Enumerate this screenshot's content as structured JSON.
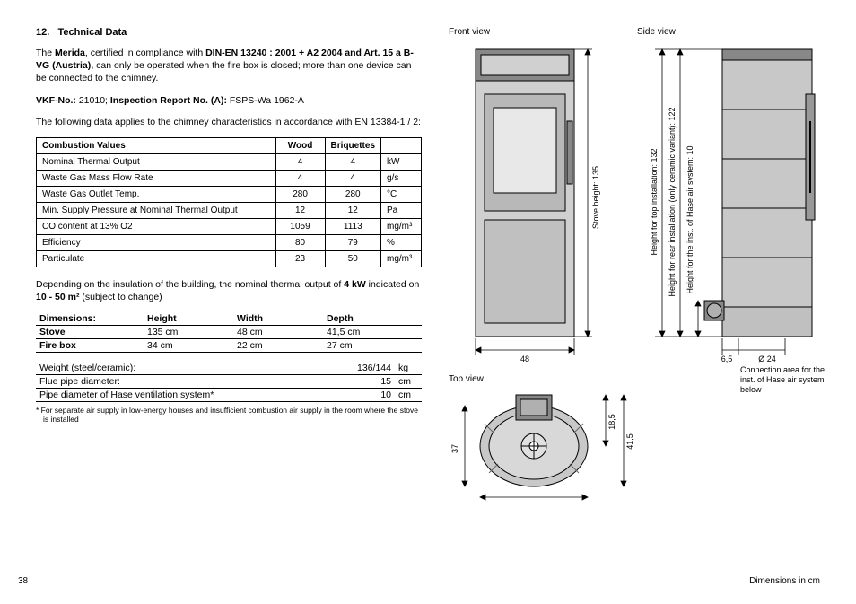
{
  "section": {
    "num": "12.",
    "title": "Technical Data"
  },
  "para1": {
    "pre": "The ",
    "model": "Merida",
    "mid1": ", certified in compliance with ",
    "std": "DIN-EN 13240 : 2001 + A2 2004 and Art. 15 a B-VG (Austria),",
    "rest": " can only be operated when the fire box is closed; more than one device can be connected to the chimney."
  },
  "para2": {
    "vkf_label": "VKF-No.:",
    "vkf_val": " 21010; ",
    "insp_label": "Inspection Report No. (A):",
    "insp_val": " FSPS-Wa 1962-A"
  },
  "para3": "The following data applies to the chimney characteristics in accordance with EN 13384-1 / 2:",
  "combustion": {
    "header": {
      "c0": "Combustion Values",
      "c1": "Wood",
      "c2": "Briquettes",
      "c3": ""
    },
    "rows": [
      {
        "label": "Nominal Thermal Output",
        "wood": "4",
        "briq": "4",
        "unit": "kW"
      },
      {
        "label": "Waste Gas Mass Flow Rate",
        "wood": "4",
        "briq": "4",
        "unit": "g/s"
      },
      {
        "label": "Waste Gas Outlet Temp.",
        "wood": "280",
        "briq": "280",
        "unit": "°C"
      },
      {
        "label": "Min. Supply Pressure at Nominal Thermal Output",
        "wood": "12",
        "briq": "12",
        "unit": "Pa"
      },
      {
        "label": "CO content at 13% O2",
        "wood": "1059",
        "briq": "1113",
        "unit": "mg/m³"
      },
      {
        "label": "Efficiency",
        "wood": "80",
        "briq": "79",
        "unit": "%"
      },
      {
        "label": "Particulate",
        "wood": "23",
        "briq": "50",
        "unit": "mg/m³"
      }
    ]
  },
  "para4": {
    "pre": "Depending on the insulation of the building, the nominal thermal output of ",
    "kw": "4 kW",
    "mid": " indicated on ",
    "area": "10 - 50 m²",
    "post": " (subject to change)"
  },
  "dims": {
    "header": {
      "c0": "Dimensions:",
      "c1": "Height",
      "c2": "Width",
      "c3": "Depth"
    },
    "rows": [
      {
        "label": "Stove",
        "h": "135 cm",
        "w": "48 cm",
        "d": "41,5 cm"
      },
      {
        "label": "Fire box",
        "h": "34 cm",
        "w": "22 cm",
        "d": "27 cm"
      }
    ]
  },
  "specs": {
    "rows": [
      {
        "label": "Weight (steel/ceramic):",
        "val": "136/144",
        "unit": "kg"
      },
      {
        "label": "Flue pipe diameter:",
        "val": "15",
        "unit": "cm"
      },
      {
        "label": "Pipe diameter of Hase ventilation system*",
        "val": "10",
        "unit": "cm"
      }
    ]
  },
  "footnote": "* For separate air supply in low-energy houses and insufficient combustion air supply in the room where the stove is installed",
  "labels": {
    "front": "Front view",
    "side": "Side view",
    "top": "Top view",
    "stove_height": "Stove height: 135",
    "top_install": "Height for top installation: 132",
    "rear_install": "Height for rear installation (only ceramic variant): 122",
    "hase_install": "Height for the inst. of Hase air system: 10",
    "width_48": "48",
    "depth_37": "37",
    "depth_415": "41,5",
    "depth_185": "18,5",
    "side_65": "6,5",
    "side_o24": "Ø 24",
    "conn_area": "Connection area for the inst. of Hase air system below",
    "dims_cm": "Dimensions in cm"
  },
  "page_num": "38",
  "colors": {
    "stroke": "#000000",
    "fill_body": "#d0d0d0",
    "fill_dark": "#888888",
    "fill_glass": "#e8e8e8",
    "fill_white": "#ffffff"
  }
}
